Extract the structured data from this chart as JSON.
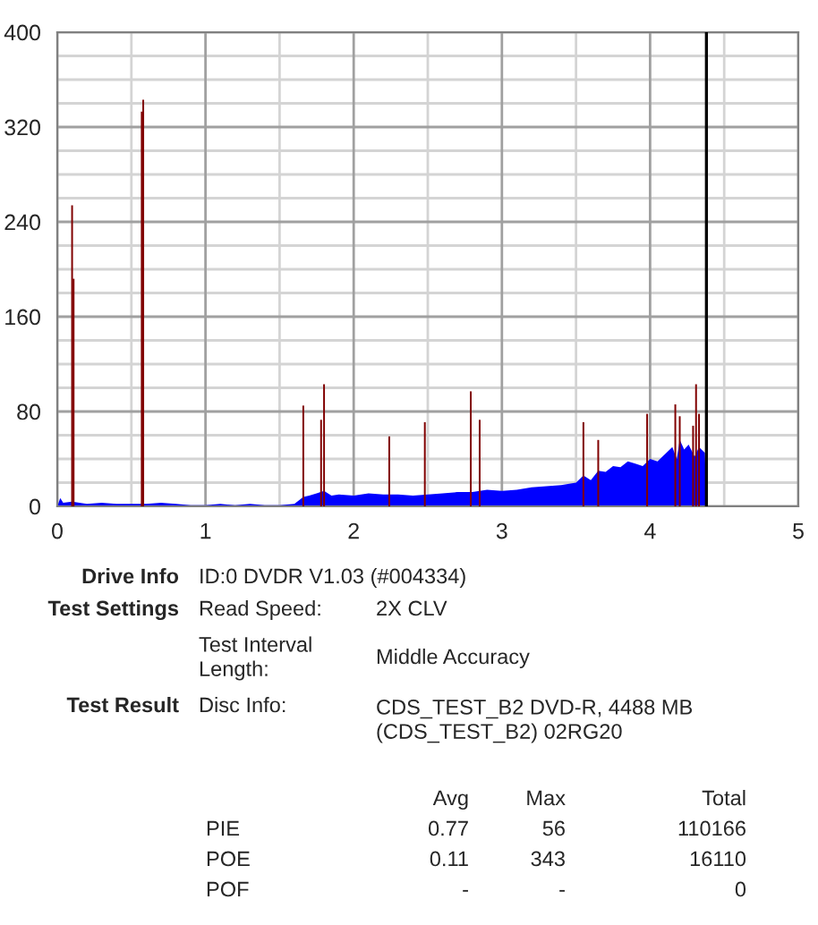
{
  "chart_data": {
    "type": "area",
    "xlim": [
      0,
      5
    ],
    "xticks": [
      0,
      1,
      2,
      3,
      4,
      5
    ],
    "ylim": [
      0,
      400
    ],
    "yticks": [
      0,
      80,
      160,
      240,
      320,
      400
    ],
    "grid": true,
    "legend": false,
    "series": [
      {
        "color": "#0000ff",
        "x": [
          0,
          0.02,
          0.04,
          0.1,
          0.2,
          0.3,
          0.4,
          0.5,
          0.6,
          0.7,
          0.8,
          0.9,
          1.0,
          1.1,
          1.2,
          1.3,
          1.4,
          1.5,
          1.6,
          1.66,
          1.7,
          1.75,
          1.8,
          1.85,
          1.9,
          2.0,
          2.1,
          2.2,
          2.3,
          2.4,
          2.5,
          2.6,
          2.7,
          2.8,
          2.9,
          3.0,
          3.1,
          3.2,
          3.3,
          3.4,
          3.5,
          3.55,
          3.6,
          3.65,
          3.7,
          3.75,
          3.8,
          3.85,
          3.9,
          3.95,
          4.0,
          4.05,
          4.1,
          4.15,
          4.18,
          4.2,
          4.23,
          4.26,
          4.3,
          4.33,
          4.37,
          4.38
        ],
        "values": [
          0,
          7,
          3,
          4,
          2,
          3,
          2,
          2,
          2,
          3,
          2,
          1,
          1,
          2,
          1,
          2,
          1,
          1,
          2,
          8,
          9,
          11,
          13,
          9,
          10,
          9,
          11,
          10,
          10,
          9,
          10,
          11,
          12,
          12,
          14,
          13,
          14,
          16,
          17,
          18,
          20,
          26,
          22,
          30,
          29,
          34,
          33,
          38,
          36,
          34,
          40,
          38,
          44,
          50,
          40,
          56,
          48,
          52,
          42,
          50,
          45,
          0
        ]
      },
      {
        "type": "bar",
        "color": "#800000",
        "x": [
          0.1,
          0.11,
          0.57,
          0.58,
          1.66,
          1.78,
          1.8,
          2.24,
          2.48,
          2.79,
          2.85,
          3.55,
          3.65,
          3.98,
          4.17,
          4.2,
          4.29,
          4.31,
          4.33
        ],
        "values": [
          254,
          192,
          333,
          343,
          85,
          73,
          103,
          59,
          71,
          97,
          73,
          71,
          56,
          78,
          86,
          76,
          68,
          103,
          78
        ]
      }
    ],
    "ref_lines": [
      {
        "axis": "x",
        "value": 4.38,
        "color": "#000000"
      }
    ],
    "annotations": [
      "Drive Info",
      "ID:0 DVDR V1.03 (#004334)",
      "Test Settings",
      "Read Speed:",
      "2X CLV",
      "Test Interval\nLength:",
      "Middle Accuracy",
      "Test Result",
      "Disc Info:",
      "CDS_TEST_B2 DVD-R, 4488 MB\n(CDS_TEST_B2) 02RG20",
      "Avg",
      "Max",
      "Total",
      "PIE",
      "0.77",
      "56",
      "110166",
      "POE",
      "0.11",
      "343",
      "16110",
      "POF",
      "-",
      "-",
      "0"
    ]
  }
}
